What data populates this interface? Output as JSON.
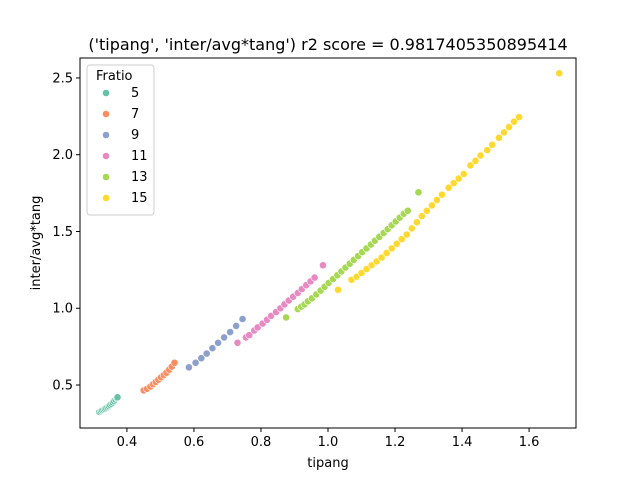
{
  "chart_data": {
    "type": "scatter",
    "title": "('tipang', 'inter/avg*tang') r2 score = 0.9817405350895414",
    "xlabel": "tipang",
    "ylabel": "inter/avg*tang",
    "xlim": [
      0.26,
      1.74
    ],
    "ylim": [
      0.22,
      2.63
    ],
    "xticks": [
      "0.4",
      "0.6",
      "0.8",
      "1.0",
      "1.2",
      "1.4",
      "1.6"
    ],
    "xtick_values": [
      0.4,
      0.6,
      0.8,
      1.0,
      1.2,
      1.4,
      1.6
    ],
    "yticks": [
      "0.5",
      "1.0",
      "1.5",
      "2.0",
      "2.5"
    ],
    "ytick_values": [
      0.5,
      1.0,
      1.5,
      2.0,
      2.5
    ],
    "grid": false,
    "legend": {
      "title": "Fratio",
      "placement": "top-left"
    },
    "series": [
      {
        "name": "5",
        "color": "#66c2a5",
        "points": [
          [
            0.318,
            0.325
          ],
          [
            0.322,
            0.33
          ],
          [
            0.326,
            0.335
          ],
          [
            0.33,
            0.34
          ],
          [
            0.334,
            0.345
          ],
          [
            0.338,
            0.35
          ],
          [
            0.342,
            0.356
          ],
          [
            0.346,
            0.362
          ],
          [
            0.35,
            0.37
          ],
          [
            0.354,
            0.378
          ],
          [
            0.358,
            0.386
          ],
          [
            0.362,
            0.395
          ],
          [
            0.366,
            0.405
          ],
          [
            0.37,
            0.415
          ],
          [
            0.372,
            0.42
          ]
        ]
      },
      {
        "name": "7",
        "color": "#fc8d62",
        "points": [
          [
            0.45,
            0.465
          ],
          [
            0.46,
            0.475
          ],
          [
            0.47,
            0.49
          ],
          [
            0.478,
            0.505
          ],
          [
            0.486,
            0.52
          ],
          [
            0.494,
            0.535
          ],
          [
            0.502,
            0.55
          ],
          [
            0.51,
            0.565
          ],
          [
            0.518,
            0.58
          ],
          [
            0.526,
            0.6
          ],
          [
            0.534,
            0.62
          ],
          [
            0.542,
            0.645
          ]
        ]
      },
      {
        "name": "9",
        "color": "#8da0cb",
        "points": [
          [
            0.585,
            0.615
          ],
          [
            0.605,
            0.645
          ],
          [
            0.622,
            0.675
          ],
          [
            0.638,
            0.705
          ],
          [
            0.655,
            0.74
          ],
          [
            0.672,
            0.775
          ],
          [
            0.69,
            0.81
          ],
          [
            0.708,
            0.845
          ],
          [
            0.726,
            0.885
          ],
          [
            0.745,
            0.93
          ]
        ]
      },
      {
        "name": "11",
        "color": "#e78ac3",
        "points": [
          [
            0.73,
            0.775
          ],
          [
            0.755,
            0.81
          ],
          [
            0.765,
            0.825
          ],
          [
            0.78,
            0.855
          ],
          [
            0.79,
            0.875
          ],
          [
            0.805,
            0.9
          ],
          [
            0.818,
            0.925
          ],
          [
            0.83,
            0.95
          ],
          [
            0.845,
            0.975
          ],
          [
            0.858,
            1.0
          ],
          [
            0.87,
            1.025
          ],
          [
            0.883,
            1.05
          ],
          [
            0.896,
            1.075
          ],
          [
            0.91,
            1.1
          ],
          [
            0.922,
            1.125
          ],
          [
            0.935,
            1.15
          ],
          [
            0.948,
            1.175
          ],
          [
            0.96,
            1.2
          ],
          [
            0.985,
            1.28
          ]
        ]
      },
      {
        "name": "13",
        "color": "#a6d854",
        "points": [
          [
            0.875,
            0.94
          ],
          [
            0.91,
            0.995
          ],
          [
            0.92,
            1.01
          ],
          [
            0.93,
            1.025
          ],
          [
            0.94,
            1.045
          ],
          [
            0.952,
            1.065
          ],
          [
            0.965,
            1.09
          ],
          [
            0.978,
            1.115
          ],
          [
            0.99,
            1.14
          ],
          [
            1.002,
            1.165
          ],
          [
            1.015,
            1.19
          ],
          [
            1.028,
            1.215
          ],
          [
            1.04,
            1.24
          ],
          [
            1.052,
            1.265
          ],
          [
            1.065,
            1.29
          ],
          [
            1.077,
            1.315
          ],
          [
            1.09,
            1.34
          ],
          [
            1.102,
            1.365
          ],
          [
            1.115,
            1.39
          ],
          [
            1.128,
            1.415
          ],
          [
            1.14,
            1.44
          ],
          [
            1.153,
            1.465
          ],
          [
            1.166,
            1.49
          ],
          [
            1.178,
            1.515
          ],
          [
            1.19,
            1.54
          ],
          [
            1.202,
            1.565
          ],
          [
            1.214,
            1.59
          ],
          [
            1.226,
            1.615
          ],
          [
            1.238,
            1.635
          ],
          [
            1.27,
            1.755
          ]
        ]
      },
      {
        "name": "15",
        "color": "#ffd92f",
        "points": [
          [
            1.03,
            1.12
          ],
          [
            1.07,
            1.185
          ],
          [
            1.085,
            1.205
          ],
          [
            1.1,
            1.23
          ],
          [
            1.115,
            1.255
          ],
          [
            1.13,
            1.28
          ],
          [
            1.145,
            1.305
          ],
          [
            1.16,
            1.33
          ],
          [
            1.175,
            1.36
          ],
          [
            1.19,
            1.39
          ],
          [
            1.205,
            1.42
          ],
          [
            1.22,
            1.45
          ],
          [
            1.235,
            1.48
          ],
          [
            1.25,
            1.52
          ],
          [
            1.265,
            1.56
          ],
          [
            1.28,
            1.6
          ],
          [
            1.295,
            1.635
          ],
          [
            1.31,
            1.67
          ],
          [
            1.325,
            1.705
          ],
          [
            1.34,
            1.74
          ],
          [
            1.36,
            1.785
          ],
          [
            1.375,
            1.815
          ],
          [
            1.39,
            1.845
          ],
          [
            1.405,
            1.875
          ],
          [
            1.425,
            1.93
          ],
          [
            1.44,
            1.96
          ],
          [
            1.455,
            1.995
          ],
          [
            1.475,
            2.03
          ],
          [
            1.49,
            2.065
          ],
          [
            1.51,
            2.11
          ],
          [
            1.525,
            2.145
          ],
          [
            1.54,
            2.18
          ],
          [
            1.555,
            2.215
          ],
          [
            1.57,
            2.245
          ],
          [
            1.69,
            2.53
          ]
        ]
      }
    ]
  }
}
